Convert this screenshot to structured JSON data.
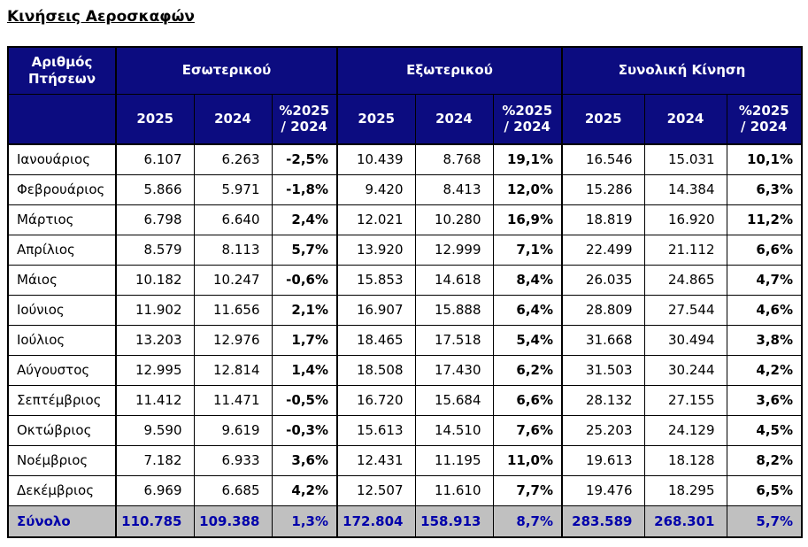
{
  "page": {
    "title": "Κινήσεις Αεροσκαφών"
  },
  "colors": {
    "header_bg": "#0c0c80",
    "header_text": "#ffffff",
    "total_bg": "#c0c0c0",
    "total_text": "#0000aa",
    "body_text": "#000000",
    "border": "#000000"
  },
  "table": {
    "corner_header": "Αριθμός\nΠτήσεων",
    "groups": [
      "Εσωτερικού",
      "Εξωτερικού",
      "Συνολική Κίνηση"
    ],
    "year_headers": [
      "2025",
      "2024",
      "%2025\n/ 2024"
    ],
    "rows": [
      {
        "month": "Ιανουάριος",
        "cells": [
          "6.107",
          "6.263",
          "-2,5%",
          "10.439",
          "8.768",
          "19,1%",
          "16.546",
          "15.031",
          "10,1%"
        ]
      },
      {
        "month": "Φεβρουάριος",
        "cells": [
          "5.866",
          "5.971",
          "-1,8%",
          "9.420",
          "8.413",
          "12,0%",
          "15.286",
          "14.384",
          "6,3%"
        ]
      },
      {
        "month": "Μάρτιος",
        "cells": [
          "6.798",
          "6.640",
          "2,4%",
          "12.021",
          "10.280",
          "16,9%",
          "18.819",
          "16.920",
          "11,2%"
        ]
      },
      {
        "month": "Απρίλιος",
        "cells": [
          "8.579",
          "8.113",
          "5,7%",
          "13.920",
          "12.999",
          "7,1%",
          "22.499",
          "21.112",
          "6,6%"
        ]
      },
      {
        "month": "Μάιος",
        "cells": [
          "10.182",
          "10.247",
          "-0,6%",
          "15.853",
          "14.618",
          "8,4%",
          "26.035",
          "24.865",
          "4,7%"
        ]
      },
      {
        "month": "Ιούνιος",
        "cells": [
          "11.902",
          "11.656",
          "2,1%",
          "16.907",
          "15.888",
          "6,4%",
          "28.809",
          "27.544",
          "4,6%"
        ]
      },
      {
        "month": "Ιούλιος",
        "cells": [
          "13.203",
          "12.976",
          "1,7%",
          "18.465",
          "17.518",
          "5,4%",
          "31.668",
          "30.494",
          "3,8%"
        ]
      },
      {
        "month": "Αύγουστος",
        "cells": [
          "12.995",
          "12.814",
          "1,4%",
          "18.508",
          "17.430",
          "6,2%",
          "31.503",
          "30.244",
          "4,2%"
        ]
      },
      {
        "month": "Σεπτέμβριος",
        "cells": [
          "11.412",
          "11.471",
          "-0,5%",
          "16.720",
          "15.684",
          "6,6%",
          "28.132",
          "27.155",
          "3,6%"
        ]
      },
      {
        "month": "Οκτώβριος",
        "cells": [
          "9.590",
          "9.619",
          "-0,3%",
          "15.613",
          "14.510",
          "7,6%",
          "25.203",
          "24.129",
          "4,5%"
        ]
      },
      {
        "month": "Νοέμβριος",
        "cells": [
          "7.182",
          "6.933",
          "3,6%",
          "12.431",
          "11.195",
          "11,0%",
          "19.613",
          "18.128",
          "8,2%"
        ]
      },
      {
        "month": "Δεκέμβριος",
        "cells": [
          "6.969",
          "6.685",
          "4,2%",
          "12.507",
          "11.610",
          "7,7%",
          "19.476",
          "18.295",
          "6,5%"
        ]
      }
    ],
    "total": {
      "label": "Σύνολο",
      "cells": [
        "110.785",
        "109.388",
        "1,3%",
        "172.804",
        "158.913",
        "8,7%",
        "283.589",
        "268.301",
        "5,7%"
      ]
    }
  }
}
